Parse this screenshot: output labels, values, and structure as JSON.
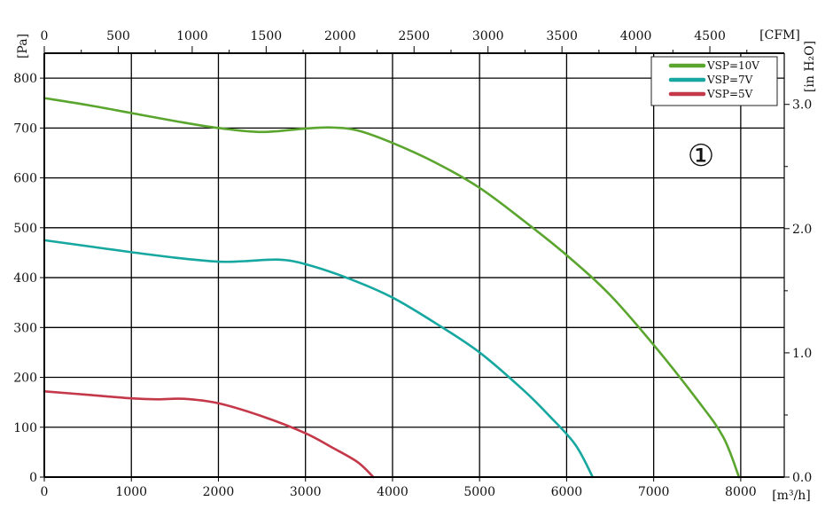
{
  "chart_data": {
    "type": "line",
    "marker_label": "①",
    "x_axis": {
      "unit_label": "[m³/h]",
      "range": [
        0,
        8500
      ],
      "ticks": [
        0,
        1000,
        2000,
        3000,
        4000,
        5000,
        6000,
        7000,
        8000
      ]
    },
    "x_axis_top": {
      "unit_label": "[CFM]",
      "range": [
        0,
        5003
      ],
      "ticks": [
        0,
        500,
        1000,
        1500,
        2000,
        2500,
        3000,
        3500,
        4000,
        4500
      ]
    },
    "y_axis": {
      "unit_label": "[Pa]",
      "range": [
        0,
        850
      ],
      "ticks": [
        0,
        100,
        200,
        300,
        400,
        500,
        600,
        700,
        800
      ]
    },
    "y_axis_right": {
      "unit_label": "[in H₂O]",
      "range": [
        0,
        3.412
      ],
      "ticks": [
        0.0,
        1.0,
        2.0,
        3.0
      ],
      "tick_labels": [
        "0.0",
        "1.0",
        "2.0",
        "3.0"
      ]
    },
    "grid": true,
    "legend_position": "top-right",
    "series": [
      {
        "name": "VSP=10V",
        "color": "#5aa52e",
        "x": [
          0,
          500,
          1000,
          1500,
          2000,
          2500,
          3000,
          3300,
          3600,
          4000,
          4500,
          5000,
          5500,
          6000,
          6500,
          7000,
          7500,
          7800,
          7980
        ],
        "y": [
          760,
          746,
          730,
          714,
          700,
          692,
          699,
          701,
          695,
          670,
          630,
          580,
          515,
          445,
          365,
          265,
          155,
          80,
          0
        ]
      },
      {
        "name": "VSP=7V",
        "color": "#16a8a0",
        "x": [
          0,
          500,
          1000,
          1500,
          2000,
          2300,
          2700,
          3000,
          3500,
          4000,
          4500,
          5000,
          5500,
          5800,
          6100,
          6300
        ],
        "y": [
          475,
          463,
          451,
          440,
          432,
          433,
          436,
          427,
          398,
          360,
          308,
          250,
          175,
          123,
          65,
          0
        ]
      },
      {
        "name": "VSP=5V",
        "color": "#c5384a",
        "x": [
          0,
          500,
          1000,
          1300,
          1600,
          2000,
          2500,
          3000,
          3300,
          3600,
          3780
        ],
        "y": [
          172,
          165,
          158,
          156,
          157,
          148,
          122,
          88,
          60,
          30,
          0
        ]
      }
    ]
  }
}
